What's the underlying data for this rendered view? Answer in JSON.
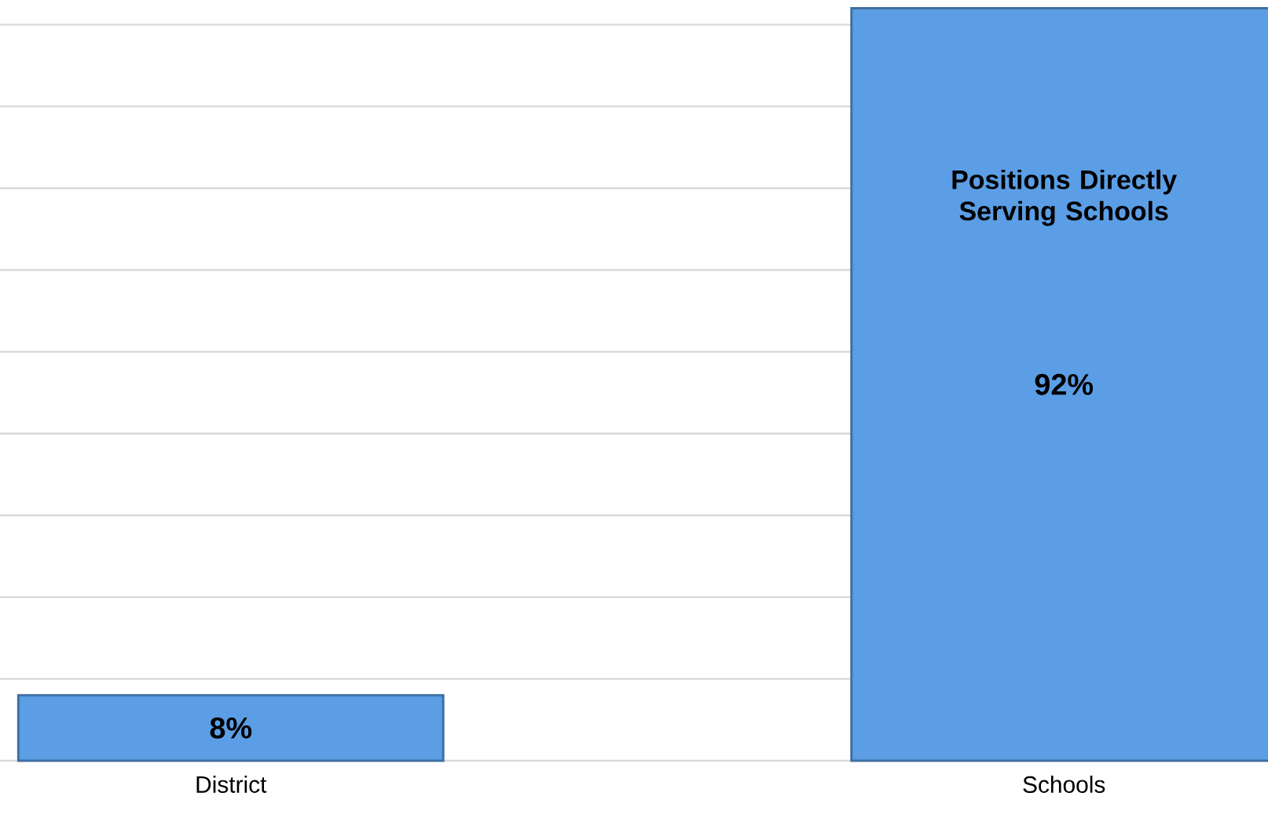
{
  "chart_data": {
    "type": "bar",
    "categories": [
      "District",
      "Schools"
    ],
    "values": [
      8,
      92
    ],
    "color": "#5b9ee6",
    "value_labels": [
      "8%",
      "92%"
    ],
    "yticks": [
      {
        "value": 0,
        "label": null
      },
      {
        "value": 10,
        "label": null
      },
      {
        "value": 20,
        "label": null
      },
      {
        "value": 30,
        "label": null
      },
      {
        "value": 40,
        "label": null
      },
      {
        "value": 50,
        "label": null
      },
      {
        "value": 60,
        "label": null
      },
      {
        "value": 70,
        "label": null
      },
      {
        "value": 80,
        "label": null
      },
      {
        "value": 90,
        "label": null
      }
    ],
    "grid": "y",
    "tick_labels": "x",
    "annotations": [
      "Positions Directly Serving Schools"
    ]
  }
}
